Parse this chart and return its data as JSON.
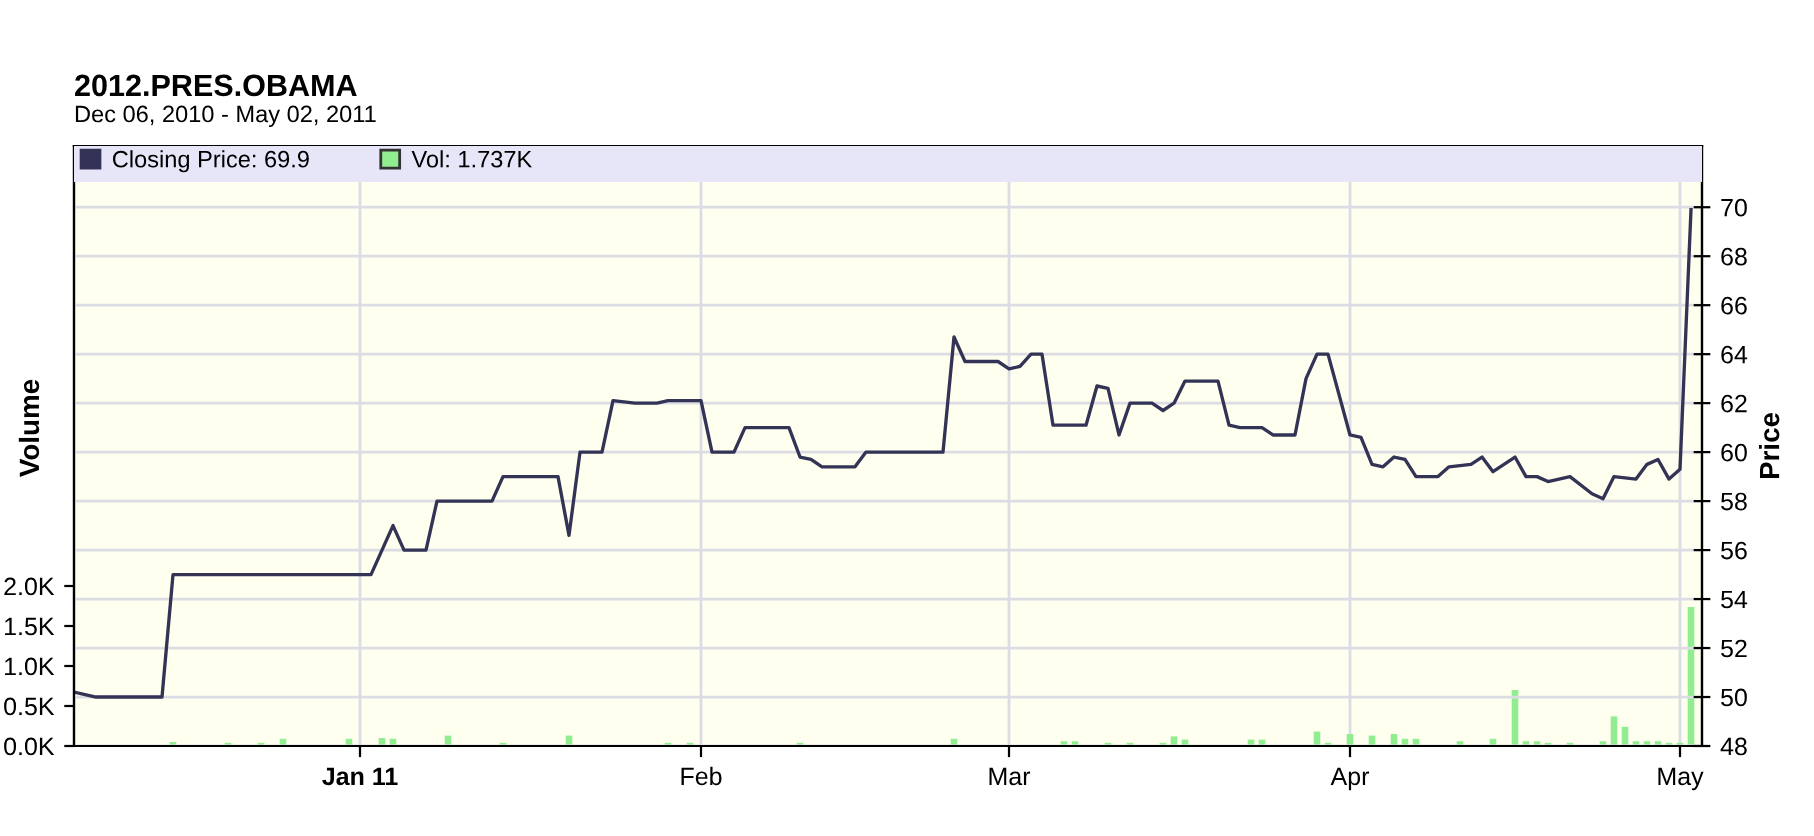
{
  "chart_data": {
    "type": "line",
    "title": "2012.PRES.OBAMA",
    "subtitle": "Dec 06, 2010 - May 02, 2011",
    "ylabel": "Volume",
    "y2label": "Price",
    "xlim": [
      "2010-12-06",
      "2011-05-03"
    ],
    "xticks": [
      {
        "value": "2011-01-01",
        "label": "Jan 11"
      },
      {
        "value": "2011-02-01",
        "label": "Feb"
      },
      {
        "value": "2011-03-01",
        "label": "Mar"
      },
      {
        "value": "2011-04-01",
        "label": "Apr"
      },
      {
        "value": "2011-05-01",
        "label": "May"
      }
    ],
    "ylim": [
      0,
      7.5
    ],
    "yticks": [
      {
        "value": 0,
        "label": "0.0K"
      },
      {
        "value": 0.5,
        "label": "0.5K"
      },
      {
        "value": 1,
        "label": "1.0K"
      },
      {
        "value": 1.5,
        "label": "1.5K"
      },
      {
        "value": 2,
        "label": "2.0K"
      }
    ],
    "y2lim": [
      48,
      72.5
    ],
    "y2ticks": [
      48,
      50,
      52,
      54,
      56,
      58,
      60,
      62,
      64,
      66,
      68,
      70
    ],
    "grid": true,
    "legend": "top left",
    "series": [
      {
        "name": "Vol: 1.737K",
        "type": "bar",
        "axis": "y",
        "color": "#90ee90",
        "x": [
          "2010-12-15",
          "2010-12-20",
          "2010-12-23",
          "2010-12-25",
          "2010-12-31",
          "2011-01-03",
          "2011-01-04",
          "2011-01-09",
          "2011-01-14",
          "2011-01-20",
          "2011-01-29",
          "2011-01-31",
          "2011-02-10",
          "2011-02-24",
          "2011-03-06",
          "2011-03-07",
          "2011-03-10",
          "2011-03-12",
          "2011-03-15",
          "2011-03-16",
          "2011-03-17",
          "2011-03-23",
          "2011-03-24",
          "2011-03-29",
          "2011-03-30",
          "2011-04-01",
          "2011-04-03",
          "2011-04-05",
          "2011-04-06",
          "2011-04-07",
          "2011-04-11",
          "2011-04-14",
          "2011-04-16",
          "2011-04-17",
          "2011-04-18",
          "2011-04-19",
          "2011-04-21",
          "2011-04-24",
          "2011-04-25",
          "2011-04-26",
          "2011-04-27",
          "2011-04-28",
          "2011-04-29",
          "2011-04-30",
          "2011-05-01",
          "2011-05-02"
        ],
        "values": [
          0.05,
          0.04,
          0.04,
          0.09,
          0.09,
          0.1,
          0.09,
          0.13,
          0.04,
          0.13,
          0.04,
          0.04,
          0.04,
          0.09,
          0.06,
          0.06,
          0.04,
          0.04,
          0.04,
          0.12,
          0.08,
          0.08,
          0.08,
          0.18,
          0.04,
          0.15,
          0.13,
          0.15,
          0.09,
          0.09,
          0.06,
          0.09,
          0.7,
          0.06,
          0.06,
          0.04,
          0.04,
          0.06,
          0.37,
          0.24,
          0.06,
          0.06,
          0.06,
          0.04,
          0.04,
          1.737
        ]
      },
      {
        "name": "Closing Price: 69.9",
        "axis": "y2",
        "color": "#333355",
        "marker": "none",
        "line_style": "solid",
        "x": [
          "2010-12-06",
          "2010-12-08",
          "2010-12-14",
          "2010-12-15",
          "2011-01-02",
          "2011-01-04",
          "2011-01-05",
          "2011-01-07",
          "2011-01-08",
          "2011-01-13",
          "2011-01-14",
          "2011-01-19",
          "2011-01-20",
          "2011-01-21",
          "2011-01-23",
          "2011-01-24",
          "2011-01-26",
          "2011-01-28",
          "2011-01-29",
          "2011-02-01",
          "2011-02-02",
          "2011-02-04",
          "2011-02-05",
          "2011-02-09",
          "2011-02-10",
          "2011-02-11",
          "2011-02-12",
          "2011-02-15",
          "2011-02-16",
          "2011-02-23",
          "2011-02-24",
          "2011-02-25",
          "2011-02-28",
          "2011-03-01",
          "2011-03-02",
          "2011-03-03",
          "2011-03-04",
          "2011-03-05",
          "2011-03-08",
          "2011-03-09",
          "2011-03-10",
          "2011-03-11",
          "2011-03-12",
          "2011-03-14",
          "2011-03-15",
          "2011-03-16",
          "2011-03-17",
          "2011-03-20",
          "2011-03-21",
          "2011-03-22",
          "2011-03-24",
          "2011-03-25",
          "2011-03-27",
          "2011-03-28",
          "2011-03-29",
          "2011-03-30",
          "2011-04-01",
          "2011-04-02",
          "2011-04-03",
          "2011-04-04",
          "2011-04-05",
          "2011-04-06",
          "2011-04-07",
          "2011-04-09",
          "2011-04-10",
          "2011-04-12",
          "2011-04-13",
          "2011-04-14",
          "2011-04-16",
          "2011-04-17",
          "2011-04-18",
          "2011-04-19",
          "2011-04-21",
          "2011-04-23",
          "2011-04-24",
          "2011-04-25",
          "2011-04-27",
          "2011-04-28",
          "2011-04-29",
          "2011-04-30",
          "2011-05-01",
          "2011-05-02"
        ],
        "values": [
          50.2,
          50.0,
          50.0,
          55.0,
          55.0,
          57.0,
          56.0,
          56.0,
          58.0,
          58.0,
          59.0,
          59.0,
          56.6,
          60.0,
          60.0,
          62.1,
          62.0,
          62.0,
          62.1,
          62.1,
          60.0,
          60.0,
          61.0,
          61.0,
          59.8,
          59.7,
          59.4,
          59.4,
          60.0,
          60.0,
          64.7,
          63.7,
          63.7,
          63.4,
          63.5,
          64.0,
          64.0,
          61.1,
          61.1,
          62.7,
          62.6,
          60.7,
          62.0,
          62.0,
          61.7,
          62.0,
          62.9,
          62.9,
          61.1,
          61.0,
          61.0,
          60.7,
          60.7,
          63.0,
          64.0,
          64.0,
          60.7,
          60.6,
          59.5,
          59.4,
          59.8,
          59.7,
          59.0,
          59.0,
          59.4,
          59.5,
          59.8,
          59.2,
          59.8,
          59.0,
          59.0,
          58.8,
          59.0,
          58.3,
          58.1,
          59.0,
          58.9,
          59.5,
          59.7,
          58.9,
          59.3,
          69.9
        ]
      }
    ]
  }
}
